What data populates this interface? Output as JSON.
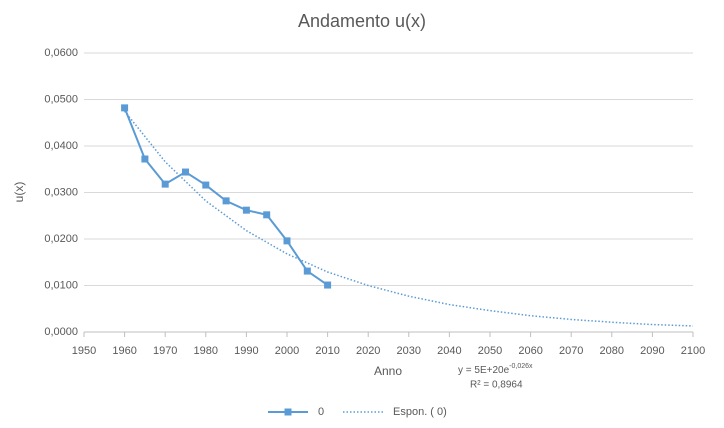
{
  "chart_data": {
    "type": "line",
    "title": "Andamento u(x)",
    "x_label": "Anno",
    "y_label": "u(x)",
    "xlim": [
      1950,
      2100
    ],
    "xticks": [
      1950,
      1960,
      1970,
      1980,
      1990,
      2000,
      2010,
      2020,
      2030,
      2040,
      2050,
      2060,
      2070,
      2080,
      2090,
      2100
    ],
    "ylim": [
      0,
      0.06
    ],
    "yticks": [
      {
        "value": 0,
        "label": "0,0000"
      },
      {
        "value": 0.01,
        "label": "0,0100"
      },
      {
        "value": 0.02,
        "label": "0,0200"
      },
      {
        "value": 0.03,
        "label": "0,0300"
      },
      {
        "value": 0.04,
        "label": "0,0400"
      },
      {
        "value": 0.05,
        "label": "0,0500"
      },
      {
        "value": 0.06,
        "label": "0,0600"
      }
    ],
    "grid": true,
    "legend": "bottom",
    "series": [
      {
        "name": "0",
        "color": "#5b9bd5",
        "style": "solid",
        "marker": "square",
        "x": [
          1960,
          1965,
          1970,
          1975,
          1980,
          1985,
          1990,
          1995,
          2000,
          2005,
          2010
        ],
        "values": [
          0.0482,
          0.0372,
          0.0318,
          0.0344,
          0.0316,
          0.0282,
          0.0262,
          0.0252,
          0.0196,
          0.0131,
          0.0101
        ]
      },
      {
        "name": "Espon. ( 0)",
        "color": "#5b9bd5",
        "style": "dotted",
        "x": [
          1960,
          1970,
          1980,
          1990,
          2000,
          2010,
          2020,
          2030,
          2040,
          2050,
          2060,
          2070,
          2080,
          2090,
          2100
        ],
        "values": [
          0.0475,
          0.0366,
          0.0282,
          0.0218,
          0.0168,
          0.0129,
          0.01,
          0.0077,
          0.0059,
          0.0046,
          0.0035,
          0.0027,
          0.0021,
          0.0016,
          0.0013
        ]
      }
    ],
    "annotations": {
      "equation": "y = 5E+20e",
      "equation_exponent": "-0,026x",
      "r_squared": "R² = 0,8964"
    }
  }
}
